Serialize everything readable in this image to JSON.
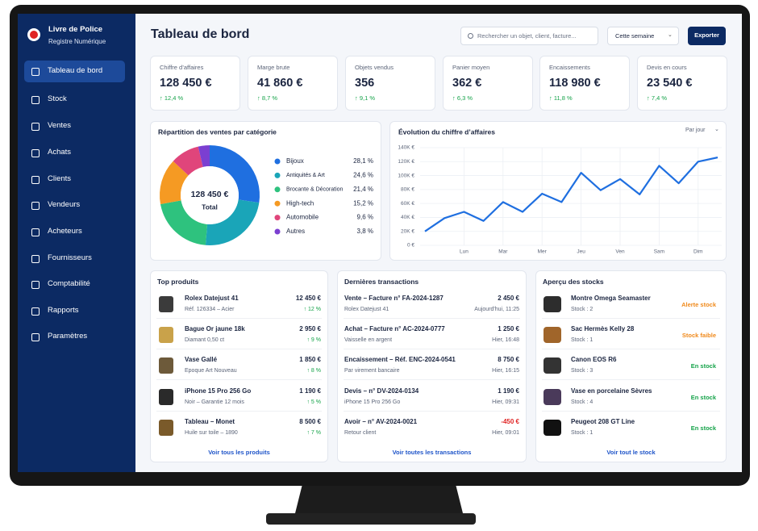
{
  "brand": {
    "title": "Livre de Police",
    "subtitle": "Registre Numérique"
  },
  "nav": [
    "Tableau de bord",
    "Stock",
    "Ventes",
    "Achats",
    "Clients",
    "Vendeurs",
    "Acheteurs",
    "Fournisseurs",
    "Comptabilité",
    "Rapports",
    "Paramètres"
  ],
  "header": {
    "title": "Tableau de bord",
    "search_placeholder": "Rechercher un objet, client, facture...",
    "period": "Cette semaine",
    "export": "Exporter"
  },
  "kpis": [
    {
      "label": "Chiffre d’affaires",
      "value": "128 450 €",
      "change": "↑ 12,4 %"
    },
    {
      "label": "Marge brute",
      "value": "41 860 €",
      "change": "↑ 8,7 %"
    },
    {
      "label": "Objets vendus",
      "value": "356",
      "change": "↑ 9,1 %"
    },
    {
      "label": "Panier moyen",
      "value": "362 €",
      "change": "↑ 6,3 %"
    },
    {
      "label": "Encaissements",
      "value": "118 980 €",
      "change": "↑ 11,8 %"
    },
    {
      "label": "Devis en cours",
      "value": "23 540 €",
      "change": "↑ 7,4 %"
    }
  ],
  "charts": [
    {
      "type": "donut",
      "title": "Répartition des ventes par catégorie",
      "center_value": "128 450 €",
      "center_label": "Total",
      "categories": [
        "Bijoux",
        "Antiquités & Art",
        "Brocante & Décoration",
        "High-tech",
        "Automobile",
        "Autres"
      ],
      "values": [
        28.1,
        24.6,
        21.4,
        15.2,
        9.6,
        3.8
      ],
      "value_labels": [
        "28,1 %",
        "24,6 %",
        "21,4 %",
        "15,2 %",
        "9,6 %",
        "3,8 %"
      ],
      "colors": [
        "#1f6fe0",
        "#1aa5b8",
        "#2ec27e",
        "#f59a23",
        "#e0457b",
        "#7b3fd1"
      ]
    },
    {
      "type": "line",
      "title": "Évolution du chiffre d’affaires",
      "control": "Par jour",
      "categories": [
        null,
        null,
        "Lun",
        null,
        "Mar",
        null,
        "Mer",
        null,
        "Jeu",
        null,
        "Ven",
        null,
        "Sam",
        null,
        "Dim",
        null
      ],
      "series": [
        {
          "name": "Chiffre d’affaires",
          "color": "#1f6fe0",
          "values": [
            20000,
            39000,
            48000,
            35000,
            62000,
            48000,
            74000,
            62000,
            104000,
            79000,
            95000,
            73000,
            114000,
            89000,
            120000,
            126000
          ]
        }
      ],
      "ylim": [
        0,
        140000
      ],
      "yticks": [
        {
          "value": 0,
          "label": "0 €"
        },
        {
          "value": 20000,
          "label": "20K €"
        },
        {
          "value": 40000,
          "label": "40K €"
        },
        {
          "value": 60000,
          "label": "60K €"
        },
        {
          "value": 80000,
          "label": "80K €"
        },
        {
          "value": 100000,
          "label": "100K €"
        },
        {
          "value": 120000,
          "label": "120K €"
        },
        {
          "value": 140000,
          "label": "140K €"
        }
      ],
      "grid": true
    }
  ],
  "top_products": {
    "title": "Top produits",
    "link": "Voir tous les produits",
    "items": [
      {
        "name": "Rolex Datejust 41",
        "detail": "Réf. 126334 – Acier",
        "price": "12 450 €",
        "change": "↑ 12 %"
      },
      {
        "name": "Bague Or jaune 18k",
        "detail": "Diamant 0,50 ct",
        "price": "2 950 €",
        "change": "↑ 9 %"
      },
      {
        "name": "Vase Gallé",
        "detail": "Epoque Art Nouveau",
        "price": "1 850 €",
        "change": "↑ 8 %"
      },
      {
        "name": "iPhone 15 Pro 256 Go",
        "detail": "Noir – Garantie 12 mois",
        "price": "1 190 €",
        "change": "↑ 5 %"
      },
      {
        "name": "Tableau – Monet",
        "detail": "Huile sur toile – 1890",
        "price": "8 500 €",
        "change": "↑ 7 %"
      }
    ]
  },
  "transactions": {
    "title": "Dernières transactions",
    "link": "Voir toutes les transactions",
    "items": [
      {
        "title": "Vente – Facture n° FA-2024-1287",
        "detail": "Rolex Datejust 41",
        "amount": "2 450 €",
        "time": "Aujourd'hui, 11:25",
        "color": "#1b2540"
      },
      {
        "title": "Achat – Facture n° AC-2024-0777",
        "detail": "Vaisselle en argent",
        "amount": "1 250 €",
        "time": "Hier, 16:48",
        "color": "#1b2540"
      },
      {
        "title": "Encaissement – Réf. ENC-2024-0541",
        "detail": "Par virement bancaire",
        "amount": "8 750 €",
        "time": "Hier, 16:15",
        "color": "#1b2540"
      },
      {
        "title": "Devis – n° DV-2024-0134",
        "detail": "iPhone 15 Pro 256 Go",
        "amount": "1 190 €",
        "time": "Hier, 09:31",
        "color": "#1b2540"
      },
      {
        "title": "Avoir – n° AV-2024-0021",
        "detail": "Retour client",
        "amount": "-450 €",
        "time": "Hier, 09:01",
        "color": "#e02424"
      }
    ]
  },
  "stock": {
    "title": "Aperçu des stocks",
    "link": "Voir tout le stock",
    "items": [
      {
        "name": "Montre Omega Seamaster",
        "qty": "Stock : 2",
        "status": "Alerte stock",
        "color": "#f08a1c"
      },
      {
        "name": "Sac Hermès Kelly 28",
        "qty": "Stock : 1",
        "status": "Stock faible",
        "color": "#f08a1c"
      },
      {
        "name": "Canon EOS R6",
        "qty": "Stock : 3",
        "status": "En stock",
        "color": "#16a34a"
      },
      {
        "name": "Vase en porcelaine Sèvres",
        "qty": "Stock : 4",
        "status": "En stock",
        "color": "#16a34a"
      },
      {
        "name": "Peugeot 208 GT Line",
        "qty": "Stock : 1",
        "status": "En stock",
        "color": "#16a34a"
      }
    ]
  }
}
